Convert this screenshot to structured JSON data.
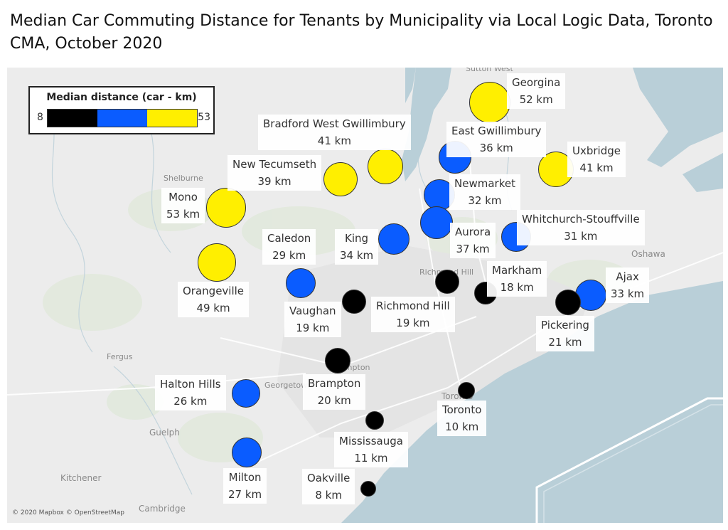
{
  "title": "Median Car Commuting Distance for Tenants by Municipality via Local Logic Data, Toronto CMA, October 2020",
  "legend": {
    "title": "Median distance (car - km)",
    "min": "8",
    "max": "53",
    "colors": [
      "#000000",
      "#0a5cff",
      "#ffef00"
    ]
  },
  "colors": {
    "water": "#b9cfd8",
    "land": "#ececec",
    "bubble_low": "#000000",
    "bubble_mid": "#0a5cff",
    "bubble_high": "#ffef00"
  },
  "reference_places": [
    "Sutton West",
    "Shelburne",
    "Oshawa",
    "Richmond Hill",
    "Brampton",
    "Georgetown",
    "Toronto",
    "Fergus",
    "Guelph",
    "Kitchener",
    "Cambridge"
  ],
  "municipalities": [
    {
      "name": "Georgina",
      "distance": "52 km"
    },
    {
      "name": "Bradford West Gwillimbury",
      "distance": "41 km"
    },
    {
      "name": "East Gwillimbury",
      "distance": "36 km"
    },
    {
      "name": "Uxbridge",
      "distance": "41 km"
    },
    {
      "name": "New Tecumseth",
      "distance": "39 km"
    },
    {
      "name": "Newmarket",
      "distance": "32 km"
    },
    {
      "name": "Mono",
      "distance": "53 km"
    },
    {
      "name": "Whitchurch-Stouffville",
      "distance": "31 km"
    },
    {
      "name": "Caledon",
      "distance": "29 km"
    },
    {
      "name": "King",
      "distance": "34 km"
    },
    {
      "name": "Aurora",
      "distance": "37 km"
    },
    {
      "name": "Markham",
      "distance": "18 km"
    },
    {
      "name": "Ajax",
      "distance": "33 km"
    },
    {
      "name": "Orangeville",
      "distance": "49 km"
    },
    {
      "name": "Vaughan",
      "distance": "19 km"
    },
    {
      "name": "Richmond Hill",
      "distance": "19 km"
    },
    {
      "name": "Pickering",
      "distance": "21 km"
    },
    {
      "name": "Halton Hills",
      "distance": "26 km"
    },
    {
      "name": "Brampton",
      "distance": "20 km"
    },
    {
      "name": "Toronto",
      "distance": "10 km"
    },
    {
      "name": "Mississauga",
      "distance": "11 km"
    },
    {
      "name": "Milton",
      "distance": "27 km"
    },
    {
      "name": "Oakville",
      "distance": "8 km"
    }
  ],
  "attribution": "© 2020 Mapbox © OpenStreetMap"
}
